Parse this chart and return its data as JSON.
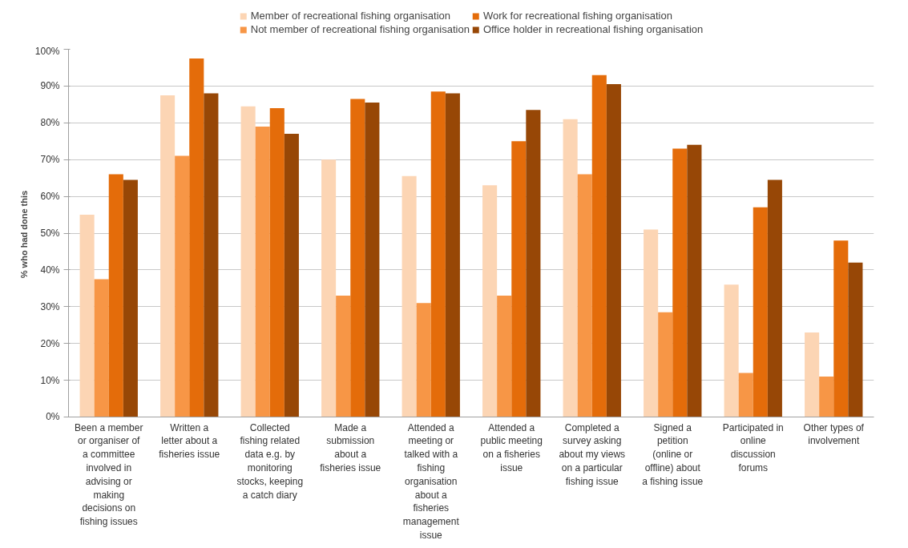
{
  "chart_data": {
    "type": "bar",
    "ylabel": "% who  had done this",
    "categories": [
      "Been a member or organiser of a committee involved in advising or making decisions on fishing issues",
      "Written a letter about a fisheries issue",
      "Collected fishing related data e.g. by monitoring stocks, keeping a catch diary",
      "Made a submission about a fisheries issue",
      "Attended a meeting or talked with a fishing organisation about a fisheries management issue",
      "Attended a public meeting on a fisheries issue",
      "Completed a survey asking about my views on a particular fishing issue",
      "Signed a petition (online or offline) about a fishing issue",
      "Participated in online discussion forums",
      "Other types of involvement"
    ],
    "series": [
      {
        "name": "Member of recreational fishing organisation",
        "color": "#fcd5b4",
        "values": [
          55,
          87.5,
          84.5,
          70,
          65.5,
          63,
          81,
          51,
          36,
          23
        ]
      },
      {
        "name": "Not member of recreational fishing organisation",
        "color": "#f79646",
        "values": [
          37.5,
          71,
          79,
          33,
          31,
          33,
          66,
          28.5,
          12,
          11
        ]
      },
      {
        "name": "Work for recreational fishing organisation",
        "color": "#e46c0a",
        "values": [
          66,
          97.5,
          84,
          86.5,
          88.5,
          75,
          93,
          73,
          57,
          48
        ]
      },
      {
        "name": "Office holder in recreational fishing organisation",
        "color": "#974706",
        "values": [
          64.5,
          88,
          77,
          85.5,
          88,
          83.5,
          90.5,
          74,
          64.5,
          42
        ]
      }
    ],
    "ylim": [
      0,
      100
    ],
    "yticks": [
      {
        "value": 0,
        "label": "0%"
      },
      {
        "value": 10,
        "label": "10%"
      },
      {
        "value": 20,
        "label": "20%"
      },
      {
        "value": 30,
        "label": "30%"
      },
      {
        "value": 40,
        "label": "40%"
      },
      {
        "value": 50,
        "label": "50%"
      },
      {
        "value": 60,
        "label": "60%"
      },
      {
        "value": 70,
        "label": "70%"
      },
      {
        "value": 80,
        "label": "80%"
      },
      {
        "value": 90,
        "label": "90%"
      },
      {
        "value": 100,
        "label": "100%"
      }
    ],
    "grid": "y",
    "legend": "top"
  }
}
